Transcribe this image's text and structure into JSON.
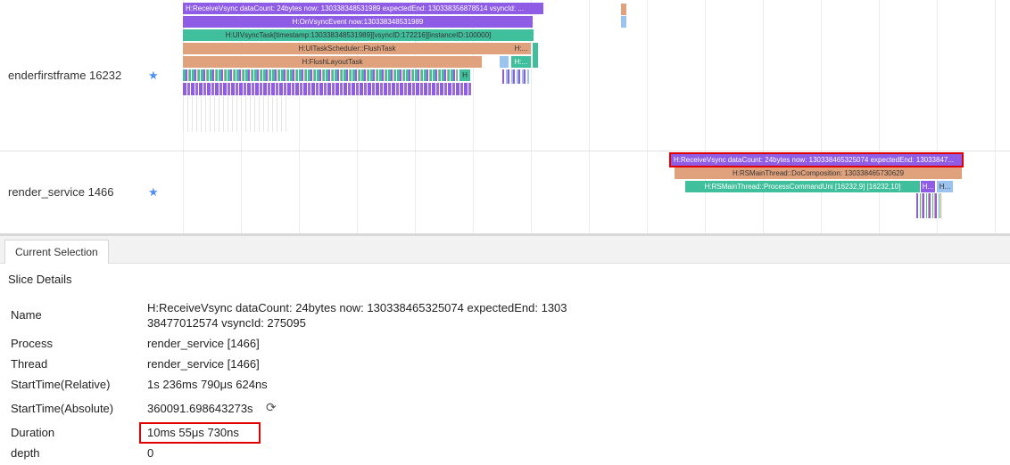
{
  "tracks": [
    {
      "label": "enderfirstframe 16232",
      "star_icon": "star-icon",
      "slices": [
        "H:ReceiveVsync dataCount: 24bytes now: 130338348531989 expectedEnd: 130338356878514 vsyncId: ...",
        "H:OnVsyncEvent now:130338348531989",
        "H:UIVsyncTask[timestamp:130338348531989][vsyncID:172216][instanceID:100000]",
        "H:UITaskScheduler::FlushTask",
        "H:FlushLayoutTask",
        "H:...",
        "H:...",
        "H"
      ]
    },
    {
      "label": "render_service 1466",
      "star_icon": "star-icon",
      "slices": [
        "H:ReceiveVsync dataCount: 24bytes now: 130338465325074 expectedEnd: 13033847...",
        "H:RSMainThread::DoComposition: 130338465730629",
        "H:RSMainThread::ProcessCommandUni [16232,9] [16232,10]",
        "H...",
        "H..."
      ]
    }
  ],
  "details": {
    "tab": "Current Selection",
    "title": "Slice Details",
    "fields": [
      {
        "key": "Name",
        "value_line1": "H:ReceiveVsync dataCount: 24bytes now: 130338465325074 expectedEnd: 1303",
        "value_line2": "38477012574 vsyncId: 275095"
      },
      {
        "key": "Process",
        "value": "render_service [1466]"
      },
      {
        "key": "Thread",
        "value": "render_service [1466]"
      },
      {
        "key": "StartTime(Relative)",
        "value": "1s 236ms 790μs 624ns"
      },
      {
        "key": "StartTime(Absolute)",
        "value": "360091.698643273s",
        "icon": "refresh-icon"
      },
      {
        "key": "Duration",
        "value": "10ms 55μs 730ns"
      },
      {
        "key": "depth",
        "value": "0"
      }
    ]
  },
  "colors": {
    "purple": "#8f5ce6",
    "teal": "#3fbf9c",
    "orange": "#e0a27c",
    "light_blue": "#9bc3ee",
    "highlight": "#e00000",
    "star": "#4d8ff5"
  }
}
